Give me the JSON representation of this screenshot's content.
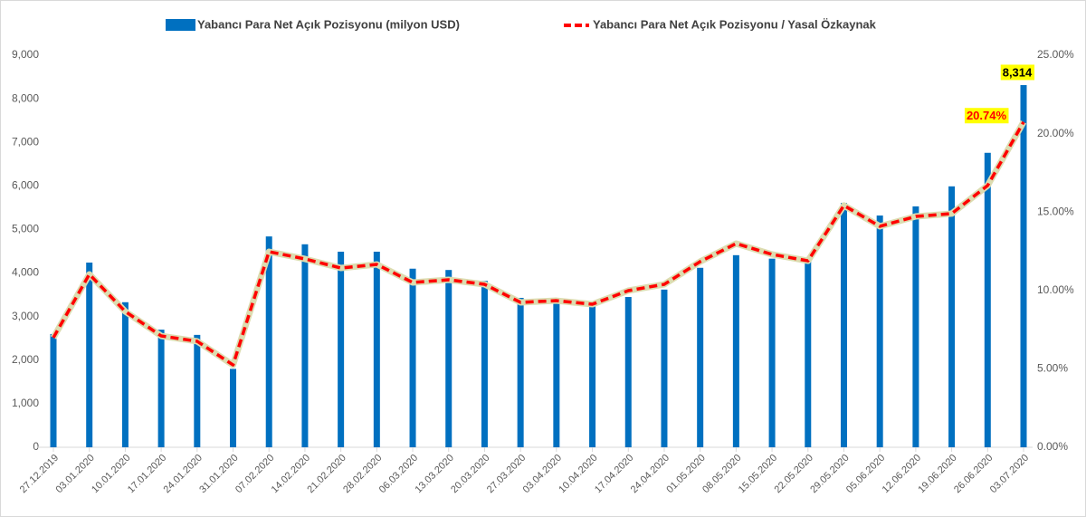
{
  "chart_data": {
    "type": "bar-line",
    "categories": [
      "27.12.2019",
      "03.01.2020",
      "10.01.2020",
      "17.01.2020",
      "24.01.2020",
      "31.01.2020",
      "07.02.2020",
      "14.02.2020",
      "21.02.2020",
      "28.02.2020",
      "06.03.2020",
      "13.03.2020",
      "20.03.2020",
      "27.03.2020",
      "03.04.2020",
      "10.04.2020",
      "17.04.2020",
      "24.04.2020",
      "01.05.2020",
      "08.05.2020",
      "15.05.2020",
      "22.05.2020",
      "29.05.2020",
      "05.06.2020",
      "12.06.2020",
      "19.06.2020",
      "26.06.2020",
      "03.07.2020"
    ],
    "series": [
      {
        "name": "Yabancı Para Net Açık Pozisyonu (milyon USD)",
        "type": "bar",
        "color": "#0070c0",
        "values": [
          2600,
          4240,
          3330,
          2700,
          2580,
          1800,
          4840,
          4660,
          4490,
          4490,
          4100,
          4070,
          3820,
          3430,
          3390,
          3260,
          3450,
          3620,
          4120,
          4410,
          4330,
          4280,
          5610,
          5320,
          5530,
          5990,
          6760,
          8314
        ],
        "value_labels": [
          null,
          null,
          null,
          null,
          null,
          null,
          null,
          null,
          null,
          null,
          null,
          null,
          null,
          null,
          null,
          null,
          null,
          null,
          null,
          null,
          null,
          null,
          null,
          null,
          null,
          null,
          null,
          "8,314"
        ]
      },
      {
        "name": "Yabancı Para Net Açık Pozisyonu / Yasal Özkaynak",
        "type": "line",
        "axis": "y2",
        "color": "#ff0000",
        "values": [
          6.99,
          11.03,
          8.66,
          7.1,
          6.76,
          5.25,
          12.47,
          12.01,
          11.43,
          11.66,
          10.51,
          10.68,
          10.39,
          9.24,
          9.35,
          9.12,
          9.99,
          10.39,
          11.84,
          12.99,
          12.3,
          11.89,
          15.42,
          14.09,
          14.72,
          14.9,
          16.69,
          20.74
        ],
        "value_labels": [
          null,
          null,
          null,
          null,
          null,
          null,
          null,
          null,
          null,
          null,
          null,
          null,
          null,
          null,
          null,
          null,
          null,
          null,
          null,
          null,
          null,
          null,
          null,
          null,
          null,
          null,
          null,
          "20.74%"
        ]
      }
    ],
    "ylim": [
      0,
      9000
    ],
    "yticks": [
      {
        "value": 0,
        "label": "0"
      },
      {
        "value": 1000,
        "label": "1,000"
      },
      {
        "value": 2000,
        "label": "2,000"
      },
      {
        "value": 3000,
        "label": "3,000"
      },
      {
        "value": 4000,
        "label": "4,000"
      },
      {
        "value": 5000,
        "label": "5,000"
      },
      {
        "value": 6000,
        "label": "6,000"
      },
      {
        "value": 7000,
        "label": "7,000"
      },
      {
        "value": 8000,
        "label": "8,000"
      },
      {
        "value": 9000,
        "label": "9,000"
      }
    ],
    "y2lim": [
      0,
      25
    ],
    "y2ticks": [
      {
        "value": 0,
        "label": "0.00%"
      },
      {
        "value": 5,
        "label": "5.00%"
      },
      {
        "value": 10,
        "label": "10.00%"
      },
      {
        "value": 15,
        "label": "15.00%"
      },
      {
        "value": 20,
        "label": "20.00%"
      },
      {
        "value": 25,
        "label": "25.00%"
      }
    ],
    "legend": "top"
  }
}
